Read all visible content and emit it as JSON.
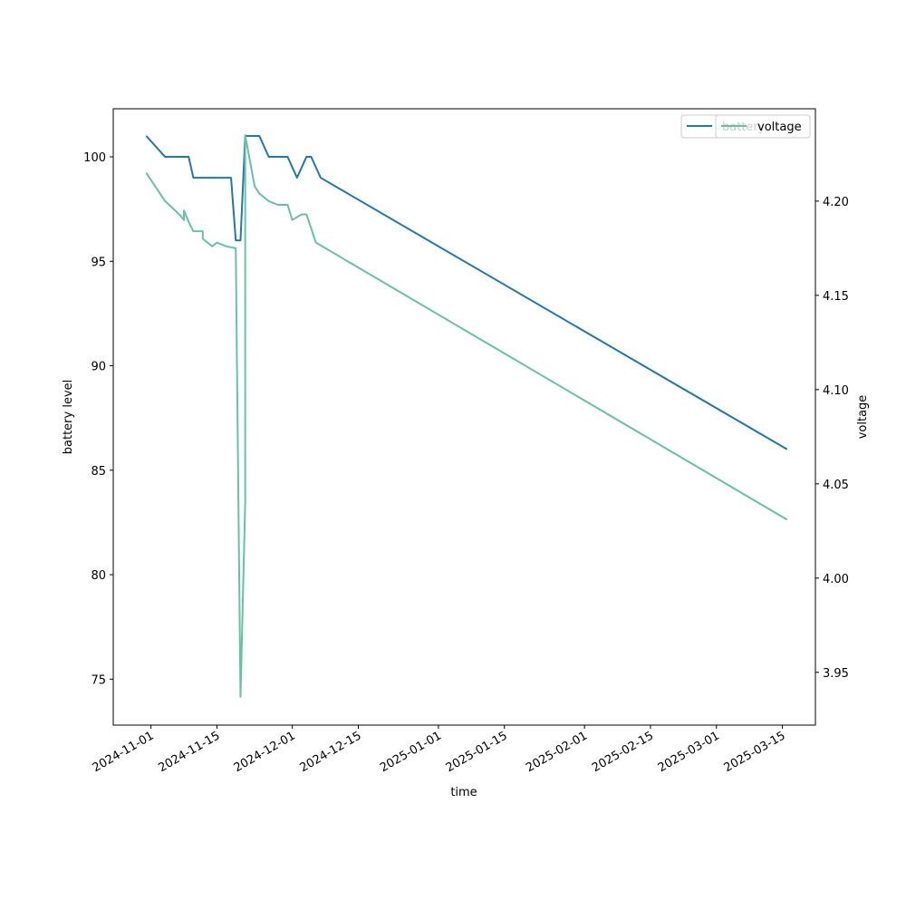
{
  "colors": {
    "battery": "#1f77b4",
    "voltage": "#66c2a5",
    "axes": "#000000",
    "background": "#ffffff"
  },
  "chart_data": {
    "type": "line",
    "xlabel": "time",
    "ylabel": "battery level",
    "ylabel_right": "voltage",
    "x_ticks": [
      "2024-11-01",
      "2024-11-15",
      "2024-12-01",
      "2024-12-15",
      "2025-01-01",
      "2025-01-15",
      "2025-02-01",
      "2025-02-15",
      "2025-03-01",
      "2025-03-15"
    ],
    "xlim": [
      "2024-10-24",
      "2025-03-22"
    ],
    "y_left": {
      "ylim": [
        72.8,
        102.3
      ],
      "ticks": [
        75,
        80,
        85,
        90,
        95,
        100
      ]
    },
    "y_right": {
      "ylim": [
        3.922,
        4.249
      ],
      "ticks": [
        "3.95",
        "4.00",
        "4.05",
        "4.10",
        "4.15",
        "4.20"
      ]
    },
    "legend": {
      "placement": "upper right",
      "overlapping": true
    },
    "series": [
      {
        "name": "battery",
        "axis": "left",
        "points": [
          [
            "2024-10-31",
            101
          ],
          [
            "2024-11-04",
            100
          ],
          [
            "2024-11-09",
            100
          ],
          [
            "2024-11-10",
            99
          ],
          [
            "2024-11-14",
            99
          ],
          [
            "2024-11-18",
            99
          ],
          [
            "2024-11-19",
            96
          ],
          [
            "2024-11-20",
            96
          ],
          [
            "2024-11-21",
            101
          ],
          [
            "2024-11-24",
            101
          ],
          [
            "2024-11-26",
            100
          ],
          [
            "2024-11-30",
            100
          ],
          [
            "2024-12-02",
            99
          ],
          [
            "2024-12-04",
            100
          ],
          [
            "2024-12-05",
            100
          ],
          [
            "2024-12-07",
            99
          ],
          [
            "2025-03-16",
            86
          ]
        ]
      },
      {
        "name": "voltage",
        "axis": "right",
        "points": [
          [
            "2024-10-31",
            4.215
          ],
          [
            "2024-11-04",
            4.2
          ],
          [
            "2024-11-07",
            4.193
          ],
          [
            "2024-11-08",
            4.19
          ],
          [
            "2024-11-08",
            4.195
          ],
          [
            "2024-11-09",
            4.189
          ],
          [
            "2024-11-10",
            4.184
          ],
          [
            "2024-11-12",
            4.184
          ],
          [
            "2024-11-12",
            4.18
          ],
          [
            "2024-11-13",
            4.178
          ],
          [
            "2024-11-14",
            4.176
          ],
          [
            "2024-11-15",
            4.178
          ],
          [
            "2024-11-16",
            4.177
          ],
          [
            "2024-11-17",
            4.176
          ],
          [
            "2024-11-19",
            4.175
          ],
          [
            "2024-11-20",
            3.937
          ],
          [
            "2024-11-21",
            4.04
          ],
          [
            "2024-11-21",
            4.235
          ],
          [
            "2024-11-23",
            4.208
          ],
          [
            "2024-11-24",
            4.204
          ],
          [
            "2024-11-26",
            4.2
          ],
          [
            "2024-11-28",
            4.198
          ],
          [
            "2024-11-30",
            4.198
          ],
          [
            "2024-12-01",
            4.19
          ],
          [
            "2024-12-03",
            4.193
          ],
          [
            "2024-12-04",
            4.193
          ],
          [
            "2024-12-06",
            4.178
          ],
          [
            "2025-03-16",
            4.031
          ]
        ]
      }
    ]
  }
}
